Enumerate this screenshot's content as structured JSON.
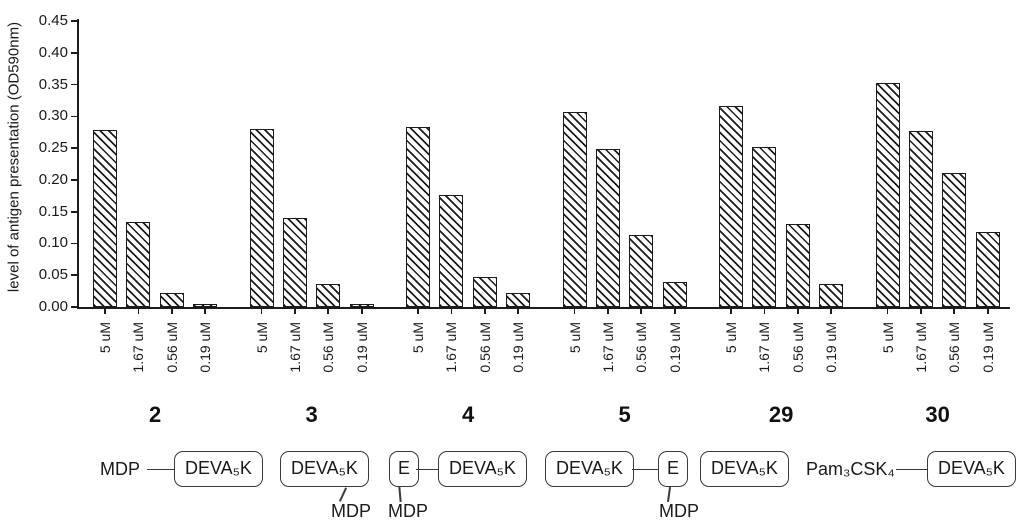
{
  "chart_data": {
    "type": "bar",
    "title": "",
    "xlabel": "",
    "ylabel": "level of antigen presentation (OD590nm)",
    "ylim": [
      0,
      0.45
    ],
    "grid": "off",
    "legend": "none",
    "bar_style": {
      "fill": "#ffffff",
      "hatch": "diagonal",
      "stroke": "#1b1b1b"
    },
    "yticks": [
      "0.00",
      "0.05",
      "0.10",
      "0.15",
      "0.20",
      "0.25",
      "0.30",
      "0.35",
      "0.40",
      "0.45"
    ],
    "xtick_labels": [
      "5 uM",
      "1.67 uM",
      "0.56 uM",
      "0.19 uM"
    ],
    "categories": [
      "2",
      "3",
      "4",
      "5",
      "29",
      "30"
    ],
    "groups": [
      {
        "label": "2",
        "values": [
          0.278,
          0.134,
          0.022,
          0.005
        ]
      },
      {
        "label": "3",
        "values": [
          0.28,
          0.14,
          0.036,
          0.005
        ]
      },
      {
        "label": "4",
        "values": [
          0.283,
          0.177,
          0.047,
          0.022
        ]
      },
      {
        "label": "5",
        "values": [
          0.307,
          0.249,
          0.114,
          0.039
        ]
      },
      {
        "label": "29",
        "values": [
          0.317,
          0.251,
          0.131,
          0.036
        ]
      },
      {
        "label": "30",
        "values": [
          0.352,
          0.277,
          0.211,
          0.118
        ]
      }
    ]
  },
  "structures": {
    "s2": {
      "prefix": "MDP",
      "box": "DEVA₅K"
    },
    "s3": {
      "box": "DEVA₅K",
      "pendant": "MDP"
    },
    "s4": {
      "ebox": "E",
      "box": "DEVA₅K",
      "pendant": "MDP"
    },
    "s5": {
      "box": "DEVA₅K",
      "ebox": "E",
      "pendant": "MDP"
    },
    "s29": {
      "box": "DEVA₅K"
    },
    "s30": {
      "prefix": "Pam₃CSK₄",
      "box": "DEVA₅K"
    }
  }
}
